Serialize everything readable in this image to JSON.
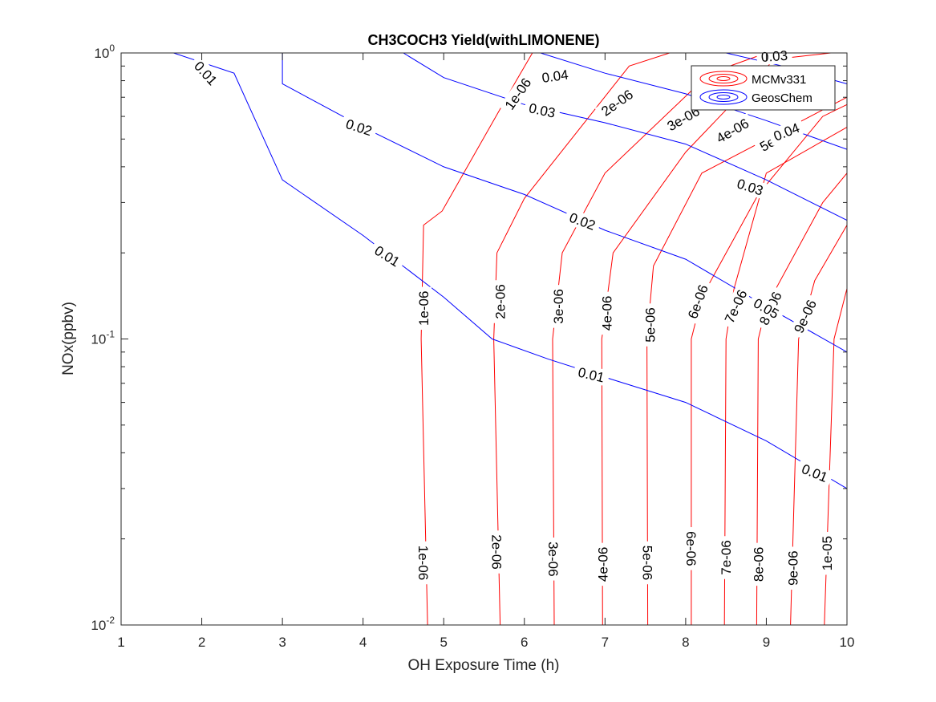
{
  "chart_data": {
    "type": "contour",
    "title": "CH3COCH3 Yield(withLIMONENE)",
    "xlabel": "OH Exposure Time (h)",
    "ylabel": "NOx(ppbv)",
    "xlim": [
      1,
      10
    ],
    "ylim": [
      0.01,
      1
    ],
    "yscale": "log",
    "x_ticks": [
      1,
      2,
      3,
      4,
      5,
      6,
      7,
      8,
      9,
      10
    ],
    "y_ticks": [
      0.01,
      0.1,
      1
    ],
    "y_tick_labels": [
      {
        "base": "10",
        "exp": "-2"
      },
      {
        "base": "10",
        "exp": "-1"
      },
      {
        "base": "10",
        "exp": "0"
      }
    ],
    "legend": {
      "placement": "top-right",
      "entries": [
        {
          "name": "MCMv331",
          "color": "#ff0000"
        },
        {
          "name": "GeosChem",
          "color": "#0000ff"
        }
      ]
    },
    "series": [
      {
        "name": "MCMv331",
        "color": "#ff0000",
        "contours": [
          {
            "level": "1e-06",
            "points": [
              [
                4.8,
                0.01
              ],
              [
                4.72,
                0.1
              ],
              [
                4.75,
                0.25
              ],
              [
                4.98,
                0.28
              ],
              [
                5.9,
                0.8
              ],
              [
                6.1,
                1.0
              ]
            ]
          },
          {
            "level": "2e-06",
            "points": [
              [
                5.7,
                0.01
              ],
              [
                5.62,
                0.1
              ],
              [
                5.66,
                0.2
              ],
              [
                6.0,
                0.31
              ],
              [
                7.3,
                0.9
              ],
              [
                7.8,
                1.0
              ]
            ]
          },
          {
            "level": "3e-06",
            "points": [
              [
                6.37,
                0.01
              ],
              [
                6.35,
                0.1
              ],
              [
                6.47,
                0.2
              ],
              [
                7.0,
                0.38
              ],
              [
                8.3,
                0.85
              ],
              [
                9.0,
                1.0
              ]
            ]
          },
          {
            "level": "4e-06",
            "points": [
              [
                6.97,
                0.01
              ],
              [
                6.96,
                0.1
              ],
              [
                7.1,
                0.2
              ],
              [
                8.0,
                0.45
              ],
              [
                9.1,
                0.95
              ],
              [
                9.8,
                1.0
              ]
            ]
          },
          {
            "level": "5e-06",
            "points": [
              [
                7.53,
                0.01
              ],
              [
                7.52,
                0.1
              ],
              [
                7.6,
                0.18
              ],
              [
                8.2,
                0.38
              ],
              [
                10.0,
                0.7
              ]
            ]
          },
          {
            "level": "6e-06",
            "points": [
              [
                8.07,
                0.01
              ],
              [
                8.07,
                0.1
              ],
              [
                8.2,
                0.14
              ],
              [
                8.9,
                0.32
              ],
              [
                9.7,
                0.6
              ],
              [
                10.0,
                0.66
              ]
            ]
          },
          {
            "level": "7e-06",
            "points": [
              [
                8.48,
                0.01
              ],
              [
                8.5,
                0.1
              ],
              [
                8.6,
                0.15
              ],
              [
                9.0,
                0.38
              ],
              [
                10.0,
                0.55
              ]
            ]
          },
          {
            "level": "8e-06",
            "points": [
              [
                8.88,
                0.01
              ],
              [
                8.9,
                0.1
              ],
              [
                9.0,
                0.13
              ],
              [
                9.7,
                0.3
              ],
              [
                10.0,
                0.38
              ]
            ]
          },
          {
            "level": "9e-06",
            "points": [
              [
                9.3,
                0.01
              ],
              [
                9.4,
                0.1
              ],
              [
                9.6,
                0.16
              ],
              [
                10.0,
                0.25
              ]
            ]
          },
          {
            "level": "1e-05",
            "points": [
              [
                9.72,
                0.01
              ],
              [
                9.84,
                0.1
              ],
              [
                10.0,
                0.15
              ]
            ]
          }
        ],
        "labels": [
          {
            "text": "1e-06",
            "x": 4.75,
            "y": 0.128,
            "angle": -90
          },
          {
            "text": "2e-06",
            "x": 5.7,
            "y": 0.135,
            "angle": -90
          },
          {
            "text": "3e-06",
            "x": 6.42,
            "y": 0.13,
            "angle": -90
          },
          {
            "text": "4e-06",
            "x": 7.02,
            "y": 0.123,
            "angle": -90
          },
          {
            "text": "5e-06",
            "x": 7.56,
            "y": 0.112,
            "angle": -90
          },
          {
            "text": "6e-06",
            "x": 8.15,
            "y": 0.135,
            "angle": -70
          },
          {
            "text": "7e-06",
            "x": 8.62,
            "y": 0.13,
            "angle": -65
          },
          {
            "text": "8e-06",
            "x": 9.05,
            "y": 0.128,
            "angle": -65
          },
          {
            "text": "9e-06",
            "x": 9.48,
            "y": 0.12,
            "angle": -65
          },
          {
            "text": "1e-06",
            "x": 5.92,
            "y": 0.72,
            "angle": -55
          },
          {
            "text": "2e-06",
            "x": 7.15,
            "y": 0.67,
            "angle": -35
          },
          {
            "text": "3e-06",
            "x": 7.97,
            "y": 0.59,
            "angle": -30
          },
          {
            "text": "4e-06",
            "x": 8.58,
            "y": 0.535,
            "angle": -30
          },
          {
            "text": "5e-06",
            "x": 9.12,
            "y": 0.5,
            "angle": -30
          },
          {
            "text": "1e-06",
            "x": 4.75,
            "y": 0.0165,
            "angle": 90
          },
          {
            "text": "2e-06",
            "x": 5.66,
            "y": 0.018,
            "angle": 90
          },
          {
            "text": "3e-06",
            "x": 6.36,
            "y": 0.017,
            "angle": 90
          },
          {
            "text": "4e-06",
            "x": 6.97,
            "y": 0.0163,
            "angle": -90
          },
          {
            "text": "5e-06",
            "x": 7.53,
            "y": 0.0165,
            "angle": 90
          },
          {
            "text": "6e-06",
            "x": 8.07,
            "y": 0.0185,
            "angle": 90
          },
          {
            "text": "7e-06",
            "x": 8.5,
            "y": 0.0172,
            "angle": -90
          },
          {
            "text": "8e-06",
            "x": 8.9,
            "y": 0.0163,
            "angle": -90
          },
          {
            "text": "9e-06",
            "x": 9.33,
            "y": 0.0158,
            "angle": -90
          },
          {
            "text": "1e-05",
            "x": 9.75,
            "y": 0.0178,
            "angle": -90
          }
        ]
      },
      {
        "name": "GeosChem",
        "color": "#0000ff",
        "contours": [
          {
            "level": "0.01",
            "points": [
              [
                1.65,
                1.0
              ],
              [
                2.4,
                0.85
              ],
              [
                3.0,
                0.36
              ],
              [
                4.0,
                0.23
              ],
              [
                5.0,
                0.14
              ],
              [
                5.6,
                0.1
              ],
              [
                6.3,
                0.085
              ],
              [
                7.1,
                0.072
              ],
              [
                8.0,
                0.06
              ],
              [
                9.0,
                0.044
              ],
              [
                10.0,
                0.03
              ]
            ]
          },
          {
            "level": "0.02",
            "points": [
              [
                3.0,
                1.0
              ],
              [
                3.0,
                0.78
              ],
              [
                4.0,
                0.55
              ],
              [
                5.0,
                0.4
              ],
              [
                6.0,
                0.32
              ],
              [
                7.0,
                0.24
              ],
              [
                8.0,
                0.19
              ],
              [
                9.0,
                0.13
              ],
              [
                10.0,
                0.09
              ]
            ]
          },
          {
            "level": "0.03",
            "points": [
              [
                4.5,
                1.0
              ],
              [
                5.0,
                0.82
              ],
              [
                6.0,
                0.66
              ],
              [
                7.0,
                0.57
              ],
              [
                8.0,
                0.48
              ],
              [
                9.0,
                0.36
              ],
              [
                10.0,
                0.26
              ]
            ]
          },
          {
            "level": "0.04",
            "points": [
              [
                6.2,
                1.0
              ],
              [
                7.0,
                0.85
              ],
              [
                8.0,
                0.72
              ],
              [
                9.0,
                0.58
              ],
              [
                10.0,
                0.46
              ]
            ]
          },
          {
            "level": "0.05",
            "points": [
              [
                8.5,
                1.0
              ],
              [
                9.2,
                0.9
              ],
              [
                10.0,
                0.78
              ]
            ]
          }
        ],
        "labels": [
          {
            "text": "0.01",
            "x": 2.05,
            "y": 0.85,
            "angle": 48
          },
          {
            "text": "0.02",
            "x": 3.95,
            "y": 0.55,
            "angle": 18
          },
          {
            "text": "0.03",
            "x": 6.22,
            "y": 0.63,
            "angle": 12
          },
          {
            "text": "0.04",
            "x": 6.38,
            "y": 0.83,
            "angle": -8
          },
          {
            "text": "0.01",
            "x": 4.3,
            "y": 0.195,
            "angle": 32
          },
          {
            "text": "0.02",
            "x": 6.72,
            "y": 0.258,
            "angle": 20
          },
          {
            "text": "0.03",
            "x": 8.8,
            "y": 0.34,
            "angle": 18
          },
          {
            "text": "0.04",
            "x": 9.25,
            "y": 0.53,
            "angle": -22
          },
          {
            "text": "0.01",
            "x": 6.83,
            "y": 0.075,
            "angle": 13
          },
          {
            "text": "0.01",
            "x": 9.6,
            "y": 0.034,
            "angle": 22
          },
          {
            "text": "0.05",
            "x": 9.0,
            "y": 0.128,
            "angle": 30
          },
          {
            "text": "0.03",
            "x": 9.1,
            "y": 0.975,
            "angle": -4
          }
        ]
      }
    ]
  }
}
